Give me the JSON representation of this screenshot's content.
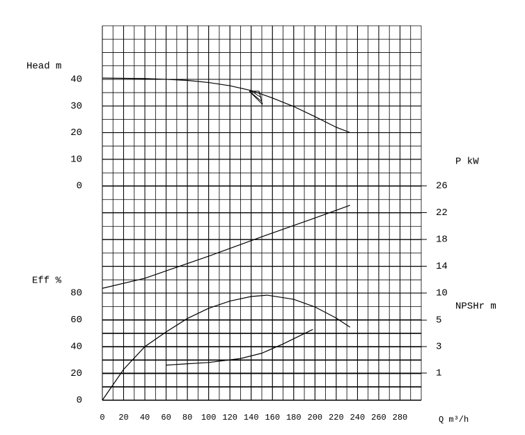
{
  "chart_data": {
    "type": "line",
    "x_label": "Q m³/h",
    "xlim": [
      0,
      300
    ],
    "xticks": [
      0,
      20,
      40,
      60,
      80,
      100,
      120,
      140,
      160,
      180,
      200,
      220,
      240,
      260,
      280
    ],
    "grid": true,
    "y_axes": [
      {
        "label": "Head m",
        "side": "left",
        "ylim": [
          0,
          40
        ],
        "yticks": [
          0,
          10,
          20,
          30,
          40
        ]
      },
      {
        "label": "Eff %",
        "side": "left",
        "ylim": [
          0,
          80
        ],
        "yticks": [
          0,
          20,
          40,
          60,
          80
        ]
      },
      {
        "label": "P kW",
        "side": "right",
        "ylim": [
          10,
          26
        ],
        "yticks": [
          10,
          14,
          18,
          22,
          26
        ]
      },
      {
        "label": "NPSHr m",
        "side": "right",
        "ylim": [
          1,
          5
        ],
        "yticks": [
          1,
          3,
          5
        ]
      }
    ],
    "series": [
      {
        "axis": 0,
        "color": "#000000",
        "x": [
          0,
          40,
          60,
          80,
          100,
          120,
          140,
          160,
          180,
          200,
          220,
          233
        ],
        "values": [
          40.5,
          40.3,
          40,
          39.6,
          38.8,
          37.6,
          35.8,
          33,
          29.8,
          26,
          22,
          20
        ]
      },
      {
        "axis": 2,
        "color": "#000000",
        "x": [
          0,
          40,
          100,
          150,
          200,
          233
        ],
        "values": [
          10.7,
          12.2,
          15.5,
          18.4,
          21.2,
          23.1
        ]
      },
      {
        "axis": 1,
        "color": "#000000",
        "x": [
          0,
          20,
          40,
          60,
          80,
          100,
          120,
          140,
          155,
          180,
          200,
          220,
          233
        ],
        "values": [
          0,
          23,
          40,
          51,
          61,
          68.6,
          74,
          77.4,
          78.4,
          75.3,
          69.6,
          61.3,
          54.5
        ]
      },
      {
        "axis": 3,
        "color": "#000000",
        "x": [
          60,
          100,
          130,
          150,
          170,
          198
        ],
        "values": [
          1.6,
          1.8,
          2.1,
          2.5,
          3.2,
          4.3
        ]
      }
    ]
  }
}
